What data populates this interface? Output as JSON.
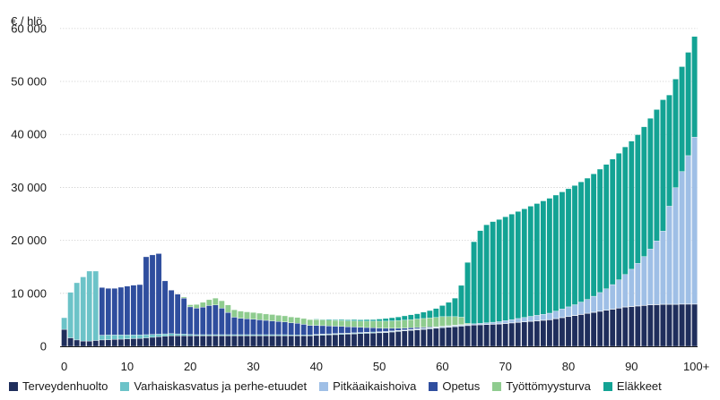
{
  "chart_data": {
    "type": "bar",
    "stacked": true,
    "ylabel": "€ / hlö",
    "ylim": [
      0,
      62000
    ],
    "yticks": [
      0,
      10000,
      20000,
      30000,
      40000,
      50000,
      60000
    ],
    "ytick_labels": [
      "0",
      "10 000",
      "20 000",
      "30 000",
      "40 000",
      "50 000",
      "60 000"
    ],
    "xticks": [
      0,
      10,
      20,
      30,
      40,
      50,
      60,
      70,
      80,
      90,
      100
    ],
    "xtick_labels": [
      "0",
      "10",
      "20",
      "30",
      "40",
      "50",
      "60",
      "70",
      "80",
      "90",
      "100+"
    ],
    "x_start": 0,
    "x_end": 100,
    "grid": true,
    "legend_position": "bottom",
    "series": [
      {
        "name": "Terveydenhuolto",
        "color": "#1f2e5c",
        "values": [
          3200,
          1600,
          1200,
          1000,
          1000,
          1100,
          1200,
          1250,
          1300,
          1350,
          1400,
          1450,
          1500,
          1600,
          1700,
          1800,
          1900,
          2000,
          2000,
          2000,
          2000,
          2000,
          2000,
          2000,
          2000,
          2000,
          2000,
          2000,
          2000,
          2000,
          2000,
          2000,
          2000,
          2000,
          2000,
          2000,
          2000,
          2000,
          2000,
          2000,
          2050,
          2100,
          2150,
          2200,
          2250,
          2300,
          2350,
          2400,
          2450,
          2500,
          2550,
          2600,
          2700,
          2800,
          2900,
          3000,
          3100,
          3200,
          3300,
          3400,
          3500,
          3600,
          3700,
          3800,
          3900,
          4000,
          4050,
          4100,
          4150,
          4200,
          4300,
          4400,
          4500,
          4600,
          4700,
          4800,
          4900,
          5000,
          5200,
          5400,
          5600,
          5800,
          6000,
          6200,
          6400,
          6600,
          6800,
          7000,
          7200,
          7400,
          7500,
          7600,
          7700,
          7800,
          7850,
          7900,
          7900,
          7900,
          7950,
          7950,
          7950
        ]
      },
      {
        "name": "Varhaiskasvatus ja perhe-etuudet",
        "color": "#6cc3c8",
        "values": [
          2200,
          8600,
          10800,
          12100,
          13200,
          13100,
          900,
          900,
          850,
          800,
          750,
          700,
          650,
          600,
          550,
          500,
          450,
          400,
          350,
          300,
          250,
          200,
          200,
          200,
          200,
          200,
          200,
          200,
          200,
          200,
          200,
          200,
          200,
          200,
          200,
          200,
          150,
          150,
          150,
          150,
          150,
          150,
          150,
          150,
          150,
          150,
          150,
          150,
          150,
          150,
          100,
          100,
          100,
          100,
          100,
          100,
          100,
          100,
          100,
          100,
          100,
          100,
          100,
          100,
          50,
          50,
          50,
          50,
          50,
          50,
          50,
          50,
          50,
          50,
          50,
          50,
          50,
          50,
          50,
          50,
          50,
          50,
          50,
          50,
          50,
          50,
          50,
          50,
          50,
          50,
          50,
          50,
          50,
          50,
          50,
          50,
          50,
          50,
          50,
          50,
          50
        ]
      },
      {
        "name": "Pitkäaikaishoiva",
        "color": "#9fbfe6",
        "values": [
          0,
          0,
          0,
          0,
          0,
          0,
          0,
          0,
          0,
          0,
          0,
          0,
          0,
          0,
          0,
          0,
          0,
          0,
          0,
          0,
          0,
          0,
          0,
          0,
          0,
          0,
          0,
          0,
          0,
          0,
          0,
          0,
          0,
          0,
          0,
          0,
          0,
          0,
          0,
          0,
          50,
          50,
          50,
          50,
          50,
          50,
          50,
          50,
          50,
          50,
          100,
          100,
          100,
          100,
          100,
          100,
          100,
          100,
          100,
          100,
          150,
          150,
          150,
          150,
          200,
          200,
          250,
          300,
          350,
          400,
          500,
          600,
          700,
          800,
          900,
          1000,
          1100,
          1200,
          1400,
          1600,
          1800,
          2000,
          2300,
          2600,
          3000,
          3500,
          4000,
          4600,
          5300,
          6100,
          7000,
          8000,
          9200,
          10500,
          12000,
          13800,
          18500,
          22000,
          25000,
          28000,
          31500,
          34000
        ]
      },
      {
        "name": "Opetus",
        "color": "#2f4e9e",
        "values": [
          0,
          0,
          0,
          0,
          0,
          0,
          9000,
          8800,
          8800,
          9000,
          9200,
          9400,
          9500,
          14700,
          15000,
          15200,
          10000,
          8200,
          7500,
          6800,
          5200,
          5000,
          5200,
          5500,
          5600,
          5000,
          4200,
          3300,
          3100,
          3000,
          2900,
          2800,
          2700,
          2600,
          2500,
          2400,
          2300,
          2200,
          2000,
          1800,
          1700,
          1600,
          1500,
          1400,
          1300,
          1200,
          1100,
          1000,
          900,
          800,
          700,
          600,
          500,
          400,
          350,
          300,
          250,
          200,
          150,
          100,
          50,
          50,
          50,
          50,
          0,
          0,
          0,
          0,
          0,
          0,
          0,
          0,
          0,
          0,
          0,
          0,
          0,
          0,
          0,
          0,
          0,
          0,
          0,
          0,
          0,
          0,
          0,
          0,
          0,
          0,
          0,
          0,
          0,
          0,
          0,
          0,
          0,
          0,
          0,
          0,
          0
        ]
      },
      {
        "name": "Työttömyysturva",
        "color": "#8fcc8f",
        "values": [
          0,
          0,
          0,
          0,
          0,
          0,
          0,
          0,
          0,
          0,
          0,
          0,
          0,
          0,
          0,
          0,
          0,
          0,
          0,
          200,
          400,
          700,
          900,
          1100,
          1300,
          1400,
          1400,
          1400,
          1350,
          1300,
          1300,
          1250,
          1200,
          1200,
          1150,
          1150,
          1100,
          1100,
          1100,
          1100,
          1100,
          1100,
          1100,
          1100,
          1100,
          1100,
          1150,
          1150,
          1200,
          1250,
          1300,
          1350,
          1400,
          1450,
          1500,
          1550,
          1600,
          1650,
          1700,
          1750,
          1800,
          1700,
          1600,
          1400,
          200,
          0,
          0,
          0,
          0,
          0,
          0,
          0,
          0,
          0,
          0,
          0,
          0,
          0,
          0,
          0,
          0,
          0,
          0,
          0,
          0,
          0,
          0,
          0,
          0,
          0,
          0,
          0,
          0,
          0,
          0,
          0,
          0,
          0,
          0,
          0,
          0
        ]
      },
      {
        "name": "Eläkkeet",
        "color": "#13a394",
        "values": [
          0,
          0,
          0,
          0,
          0,
          0,
          0,
          0,
          0,
          0,
          0,
          0,
          0,
          0,
          0,
          0,
          0,
          0,
          0,
          0,
          0,
          0,
          0,
          0,
          0,
          0,
          0,
          0,
          0,
          0,
          0,
          0,
          0,
          0,
          0,
          0,
          0,
          0,
          0,
          0,
          100,
          100,
          150,
          150,
          200,
          200,
          250,
          250,
          300,
          300,
          400,
          500,
          600,
          700,
          800,
          900,
          1000,
          1200,
          1400,
          1700,
          2100,
          2700,
          3500,
          6000,
          11500,
          15500,
          17500,
          18500,
          19000,
          19300,
          19600,
          19900,
          20200,
          20500,
          20800,
          21100,
          21400,
          21700,
          21900,
          22100,
          22300,
          22500,
          22700,
          22900,
          23100,
          23300,
          23500,
          23700,
          23900,
          24100,
          24200,
          24300,
          24500,
          24700,
          24800,
          24800,
          21000,
          20500,
          19800,
          19500,
          19000,
          20000
        ]
      }
    ]
  }
}
